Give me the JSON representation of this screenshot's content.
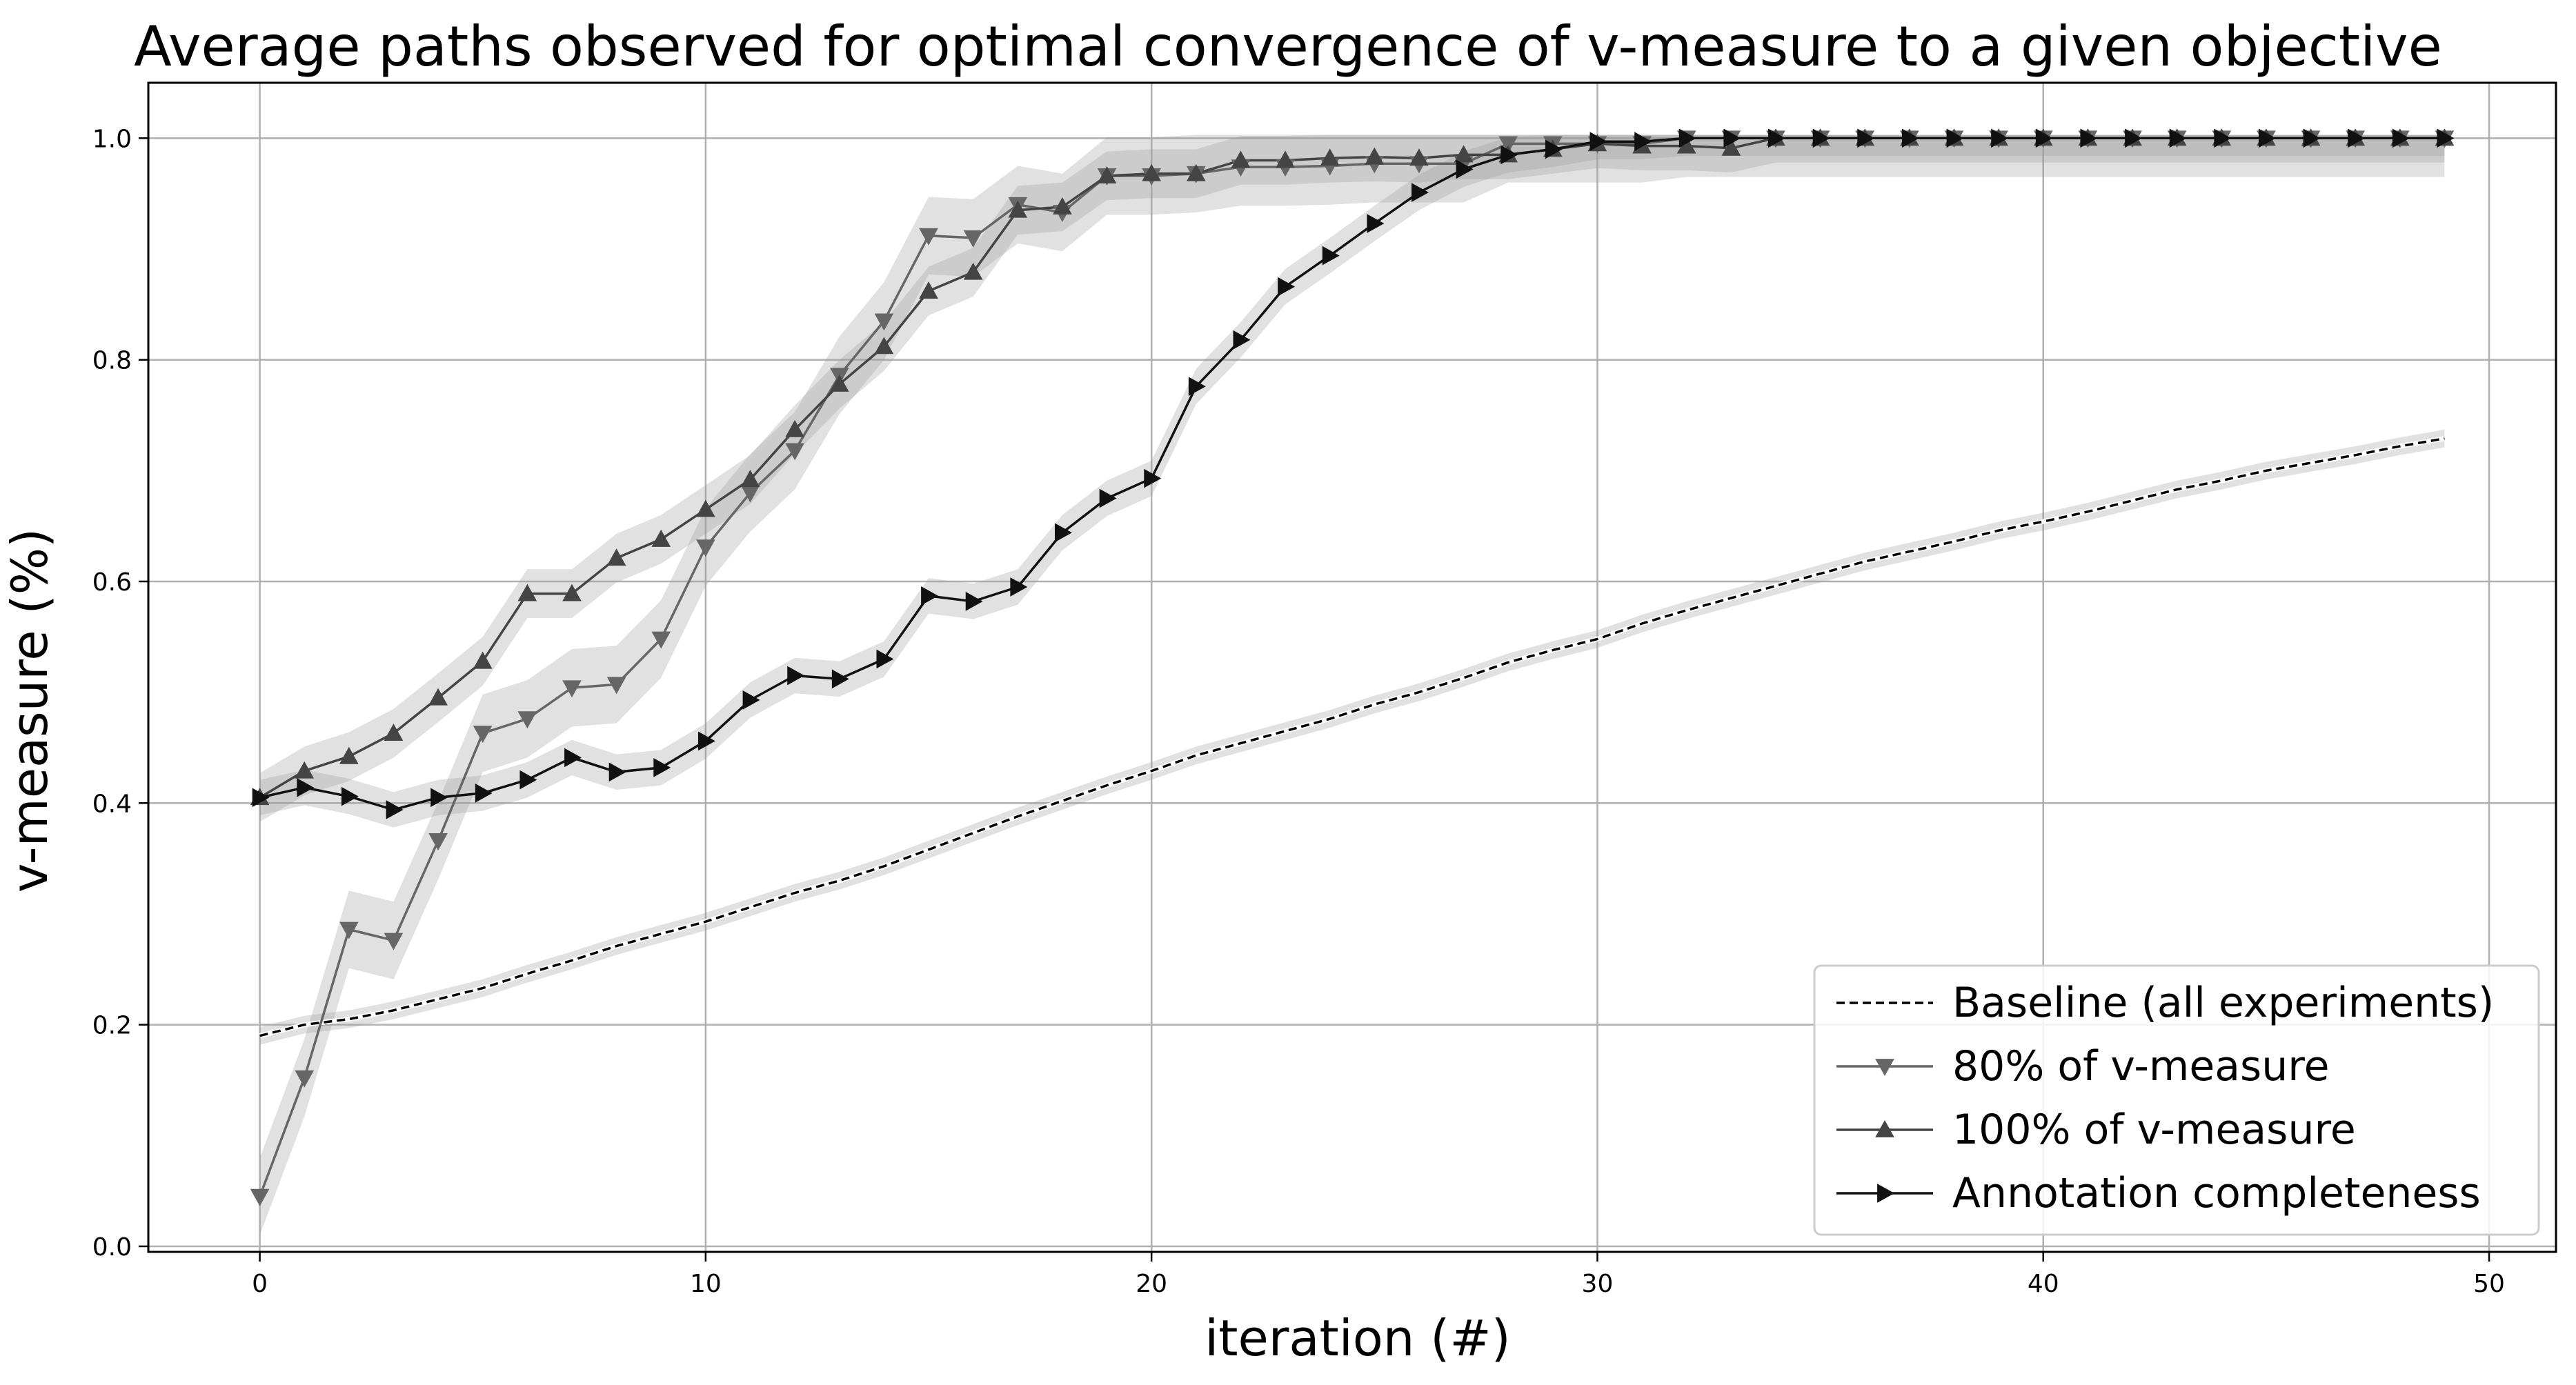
{
  "chart_data": {
    "type": "line",
    "title": "Average paths observed for optimal convergence of v-measure to a given objective",
    "xlabel": "iteration (#)",
    "ylabel": "v-measure (%)",
    "xlim": [
      -2.5,
      51.5
    ],
    "ylim": [
      -0.005,
      1.05
    ],
    "xticks": [
      0,
      10,
      20,
      30,
      40,
      50
    ],
    "xtick_labels": [
      "0",
      "10",
      "20",
      "30",
      "40",
      "50"
    ],
    "yticks": [
      0.0,
      0.2,
      0.4,
      0.6,
      0.8,
      1.0
    ],
    "ytick_labels": [
      "0.0",
      "0.2",
      "0.4",
      "0.6",
      "0.8",
      "1.0"
    ],
    "grid": true,
    "legend_position": "lower right",
    "x": [
      0,
      1,
      2,
      3,
      4,
      5,
      6,
      7,
      8,
      9,
      10,
      11,
      12,
      13,
      14,
      15,
      16,
      17,
      18,
      19,
      20,
      21,
      22,
      23,
      24,
      25,
      26,
      27,
      28,
      29,
      30,
      31,
      32,
      33,
      34,
      35,
      36,
      37,
      38,
      39,
      40,
      41,
      42,
      43,
      44,
      45,
      46,
      47,
      48,
      49
    ],
    "series": [
      {
        "name": "Baseline (all experiments)",
        "color": "#000000",
        "line_style": "dashed",
        "marker": "none",
        "values": [
          0.19,
          0.2,
          0.205,
          0.213,
          0.223,
          0.233,
          0.246,
          0.258,
          0.271,
          0.282,
          0.293,
          0.306,
          0.319,
          0.33,
          0.343,
          0.358,
          0.373,
          0.388,
          0.402,
          0.416,
          0.429,
          0.443,
          0.454,
          0.465,
          0.476,
          0.489,
          0.5,
          0.513,
          0.527,
          0.538,
          0.548,
          0.562,
          0.574,
          0.585,
          0.596,
          0.607,
          0.618,
          0.627,
          0.636,
          0.646,
          0.654,
          0.663,
          0.673,
          0.683,
          0.691,
          0.7,
          0.707,
          0.714,
          0.722,
          0.729
        ],
        "band": 0.008
      },
      {
        "name": "80% of v-measure",
        "color": "#666666",
        "line_style": "solid",
        "marker": "triangle-down",
        "values": [
          0.045,
          0.152,
          0.286,
          0.276,
          0.366,
          0.463,
          0.476,
          0.504,
          0.507,
          0.548,
          0.631,
          0.68,
          0.718,
          0.786,
          0.835,
          0.912,
          0.91,
          0.94,
          0.933,
          0.966,
          0.966,
          0.968,
          0.974,
          0.974,
          0.975,
          0.977,
          0.977,
          0.977,
          0.995,
          0.995,
          0.995,
          0.995,
          1.0,
          1.0,
          1.0,
          1.0,
          1.0,
          1.0,
          1.0,
          1.0,
          1.0,
          1.0,
          1.0,
          1.0,
          1.0,
          1.0,
          1.0,
          1.0,
          1.0,
          1.0
        ],
        "band": 0.035
      },
      {
        "name": "100% of v-measure",
        "color": "#444444",
        "line_style": "solid",
        "marker": "triangle-up",
        "values": [
          0.405,
          0.429,
          0.442,
          0.463,
          0.495,
          0.528,
          0.589,
          0.589,
          0.621,
          0.638,
          0.665,
          0.692,
          0.737,
          0.778,
          0.812,
          0.862,
          0.879,
          0.935,
          0.938,
          0.966,
          0.968,
          0.968,
          0.98,
          0.98,
          0.982,
          0.983,
          0.982,
          0.985,
          0.985,
          0.99,
          0.995,
          0.993,
          0.993,
          0.991,
          1.0,
          1.0,
          1.0,
          1.0,
          1.0,
          1.0,
          1.0,
          1.0,
          1.0,
          1.0,
          1.0,
          1.0,
          1.0,
          1.0,
          1.0,
          1.0
        ],
        "band": 0.022
      },
      {
        "name": "Annotation completeness",
        "color": "#111111",
        "line_style": "solid",
        "marker": "triangle-right",
        "values": [
          0.405,
          0.414,
          0.406,
          0.394,
          0.405,
          0.409,
          0.421,
          0.441,
          0.428,
          0.432,
          0.456,
          0.493,
          0.515,
          0.512,
          0.53,
          0.587,
          0.582,
          0.595,
          0.644,
          0.675,
          0.693,
          0.776,
          0.818,
          0.866,
          0.894,
          0.923,
          0.951,
          0.972,
          0.985,
          0.99,
          0.997,
          0.997,
          1.0,
          1.0,
          1.0,
          1.0,
          1.0,
          1.0,
          1.0,
          1.0,
          1.0,
          1.0,
          1.0,
          1.0,
          1.0,
          1.0,
          1.0,
          1.0,
          1.0,
          1.0
        ],
        "band": 0.016
      }
    ]
  }
}
